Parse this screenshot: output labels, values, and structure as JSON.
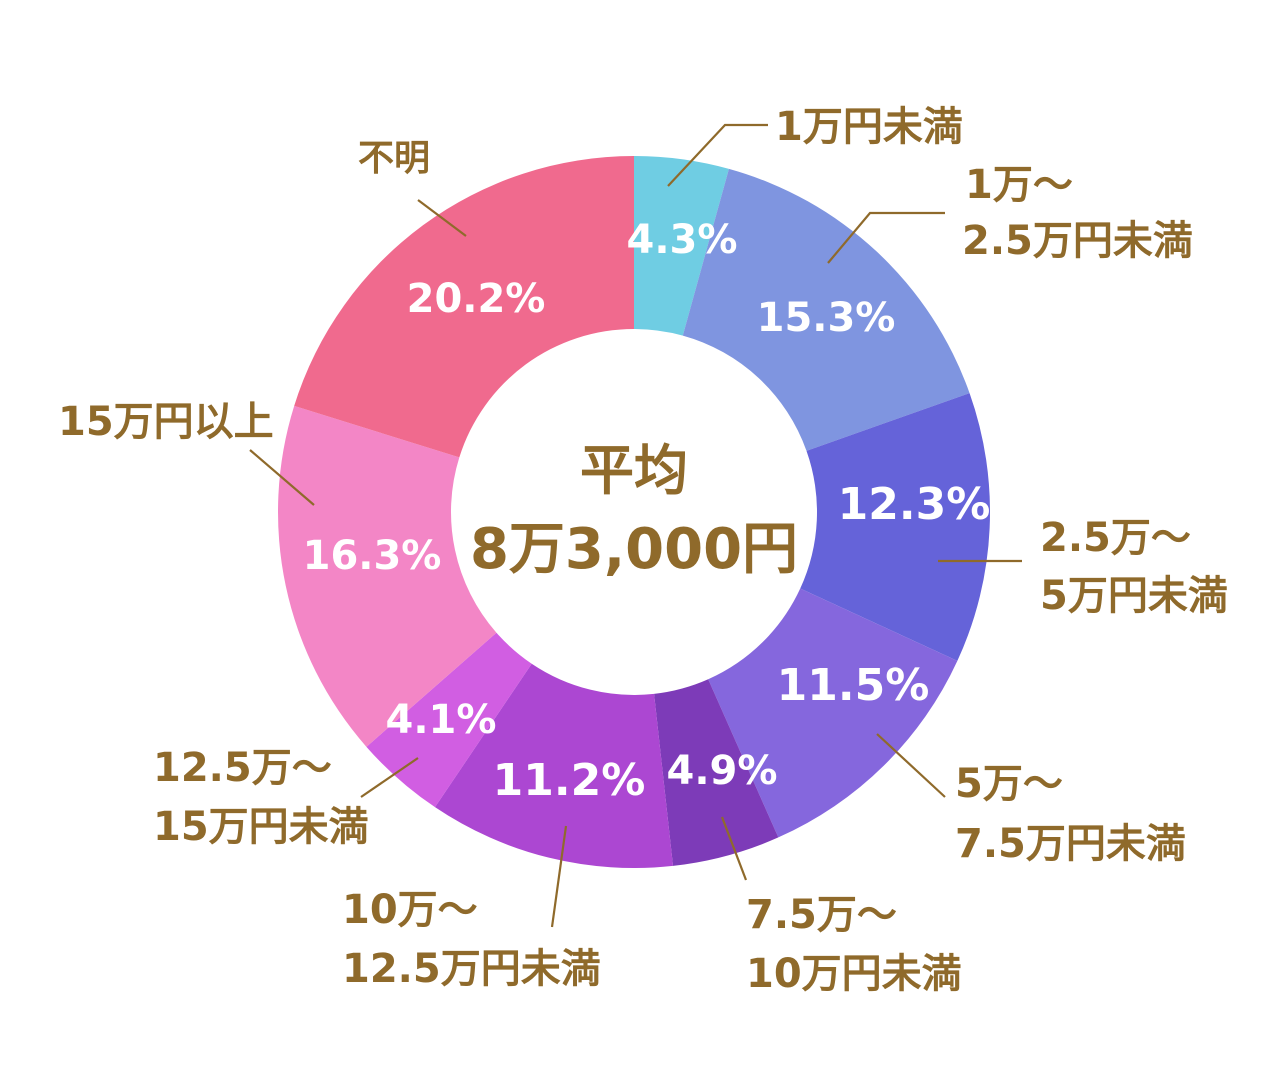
{
  "chart_data": {
    "type": "pie",
    "center": {
      "line1": "平均",
      "line2": "8万3,000円"
    },
    "slices": [
      {
        "label_lines": [
          "1万円未満"
        ],
        "value": 4.3,
        "value_label": "4.3%",
        "color": "#6fcde3"
      },
      {
        "label_lines": [
          "1万～",
          "2.5万円未満"
        ],
        "value": 15.3,
        "value_label": "15.3%",
        "color": "#7f95e0"
      },
      {
        "label_lines": [
          "2.5万～",
          "5万円未満"
        ],
        "value": 12.3,
        "value_label": "12.3%",
        "color": "#6563d9"
      },
      {
        "label_lines": [
          "5万～",
          "7.5万円未満"
        ],
        "value": 11.5,
        "value_label": "11.5%",
        "color": "#8567dd"
      },
      {
        "label_lines": [
          "7.5万～",
          "10万円未満"
        ],
        "value": 4.9,
        "value_label": "4.9%",
        "color": "#7d3bb8"
      },
      {
        "label_lines": [
          "10万～",
          "12.5万円未満"
        ],
        "value": 11.2,
        "value_label": "11.2%",
        "color": "#ac47d2"
      },
      {
        "label_lines": [
          "12.5万～",
          "15万円未満"
        ],
        "value": 4.1,
        "value_label": "4.1%",
        "color": "#d15ee2"
      },
      {
        "label_lines": [
          "15万円以上"
        ],
        "value": 16.3,
        "value_label": "16.3%",
        "color": "#f386c6"
      },
      {
        "label_lines": [
          "不明"
        ],
        "value": 20.2,
        "value_label": "20.2%",
        "color": "#f06a8e"
      }
    ]
  }
}
